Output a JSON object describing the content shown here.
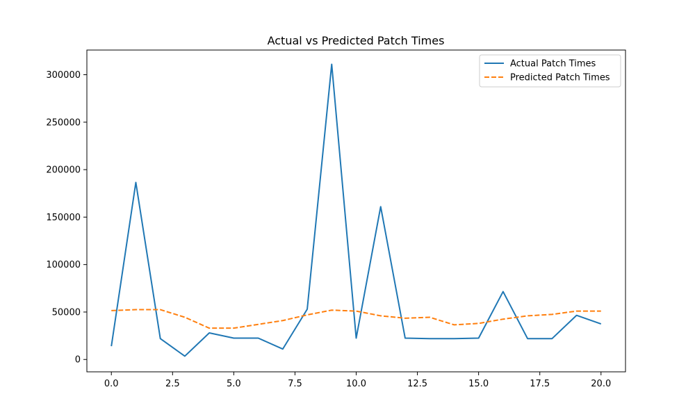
{
  "chart_data": {
    "type": "line",
    "title": "Actual vs Predicted Patch Times",
    "xlabel": "",
    "ylabel": "",
    "xlim": [
      -1.0,
      21.0
    ],
    "ylim": [
      -13000,
      326000
    ],
    "x_ticks": [
      0.0,
      2.5,
      5.0,
      7.5,
      10.0,
      12.5,
      15.0,
      17.5,
      20.0
    ],
    "x_tick_labels": [
      "0.0",
      "2.5",
      "5.0",
      "7.5",
      "10.0",
      "12.5",
      "15.0",
      "17.5",
      "20.0"
    ],
    "y_ticks": [
      0,
      50000,
      100000,
      150000,
      200000,
      250000,
      300000
    ],
    "y_tick_labels": [
      "0",
      "50000",
      "100000",
      "150000",
      "200000",
      "250000",
      "300000"
    ],
    "grid": false,
    "legend_position": "top-right",
    "x": [
      0,
      1,
      2,
      3,
      4,
      5,
      6,
      7,
      8,
      9,
      10,
      11,
      12,
      13,
      14,
      15,
      16,
      17,
      18,
      19,
      20
    ],
    "series": [
      {
        "name": "Actual Patch Times",
        "color": "#1f77b4",
        "style": "solid",
        "values": [
          14000,
          186500,
          22000,
          3500,
          28000,
          22500,
          22500,
          11000,
          53000,
          311000,
          22500,
          161000,
          22500,
          22000,
          22000,
          22500,
          71500,
          22000,
          22000,
          46500,
          37500
        ]
      },
      {
        "name": "Predicted Patch Times",
        "color": "#ff7f0e",
        "style": "dashed",
        "values": [
          51500,
          52500,
          52500,
          44500,
          33000,
          33000,
          37000,
          41000,
          47000,
          52000,
          51000,
          46000,
          43500,
          44500,
          36500,
          38000,
          42500,
          46000,
          47500,
          51000,
          51000
        ]
      }
    ]
  }
}
